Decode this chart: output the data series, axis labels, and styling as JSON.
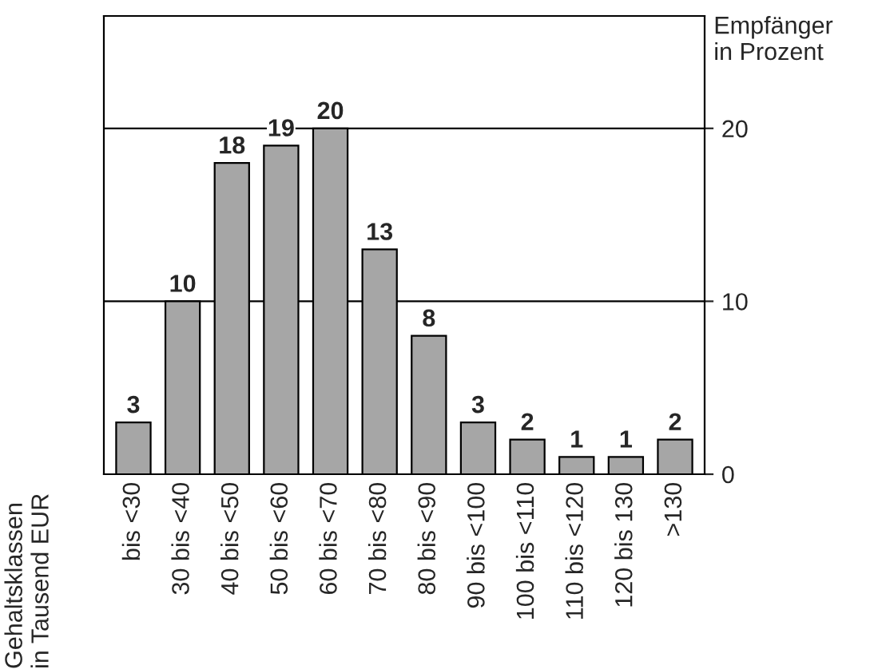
{
  "chart_data": {
    "type": "bar",
    "categories": [
      "bis <30",
      "30 bis <40",
      "40 bis <50",
      "50 bis <60",
      "60 bis <70",
      "70 bis <80",
      "80 bis <90",
      "90 bis <100",
      "100 bis <110",
      "110 bis <120",
      "120 bis 130",
      ">130"
    ],
    "values": [
      3,
      10,
      18,
      19,
      20,
      13,
      8,
      3,
      2,
      1,
      1,
      2
    ],
    "color": "#a6a6a6",
    "ylim": [
      0,
      26.5
    ],
    "yticks": [
      0,
      10,
      20
    ],
    "grid": "y",
    "data_labels": true,
    "ylabel": "Empfänger\nin Prozent",
    "annotations": [
      "Gehaltsklassen\nin Tausend EUR"
    ]
  }
}
